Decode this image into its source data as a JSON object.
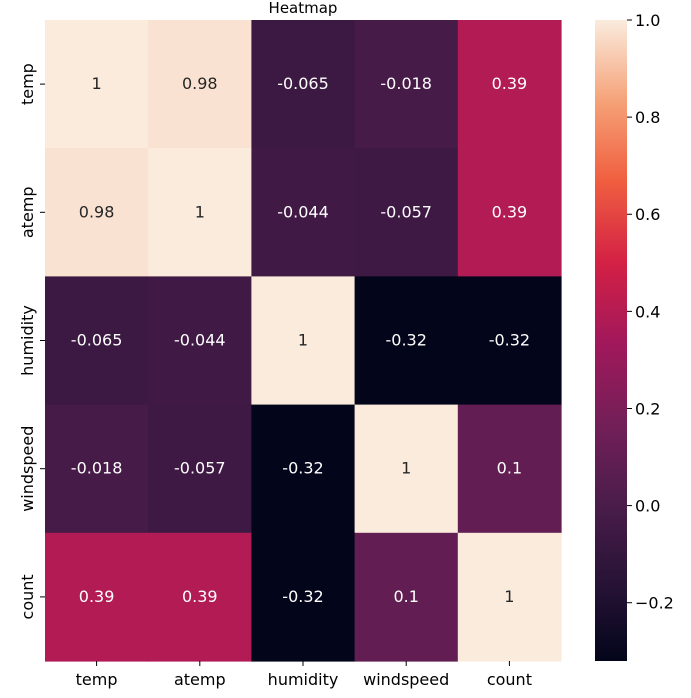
{
  "chart_data": {
    "type": "heatmap",
    "title": "Heatmap",
    "xlabel": "",
    "ylabel": "",
    "x_categories": [
      "temp",
      "atemp",
      "humidity",
      "windspeed",
      "count"
    ],
    "y_categories": [
      "temp",
      "atemp",
      "humidity",
      "windspeed",
      "count"
    ],
    "values": [
      [
        1,
        0.98,
        -0.065,
        -0.018,
        0.39
      ],
      [
        0.98,
        1,
        -0.044,
        -0.057,
        0.39
      ],
      [
        -0.065,
        -0.044,
        1,
        -0.32,
        -0.32
      ],
      [
        -0.018,
        -0.057,
        -0.32,
        1,
        0.1
      ],
      [
        0.39,
        0.39,
        -0.32,
        0.1,
        1
      ]
    ],
    "cell_labels": [
      [
        "1",
        "0.98",
        "-0.065",
        "-0.018",
        "0.39"
      ],
      [
        "0.98",
        "1",
        "-0.044",
        "-0.057",
        "0.39"
      ],
      [
        "-0.065",
        "-0.044",
        "1",
        "-0.32",
        "-0.32"
      ],
      [
        "-0.018",
        "-0.057",
        "-0.32",
        "1",
        "0.1"
      ],
      [
        "0.39",
        "0.39",
        "-0.32",
        "0.1",
        "1"
      ]
    ],
    "colorbar": {
      "colormap": "rocket",
      "range": [
        -0.32,
        1.0
      ],
      "ticks": [
        1.0,
        0.8,
        0.6,
        0.4,
        0.2,
        0.0,
        -0.2
      ],
      "tick_labels": [
        "1.0",
        "0.8",
        "0.6",
        "0.4",
        "0.2",
        "0.0",
        "−0.2"
      ]
    }
  }
}
